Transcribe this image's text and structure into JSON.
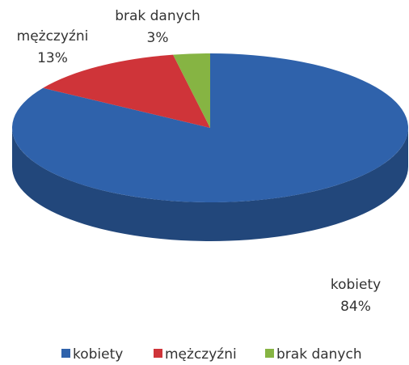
{
  "chart_data": {
    "type": "pie",
    "categories": [
      "kobiety",
      "mężczyźni",
      "brak danych"
    ],
    "values": [
      84,
      13,
      3
    ],
    "value_labels": [
      "84%",
      "13%",
      "3%"
    ],
    "colors": [
      "#2f62ab",
      "#cf3439",
      "#86b443"
    ],
    "legend": "bottom"
  }
}
